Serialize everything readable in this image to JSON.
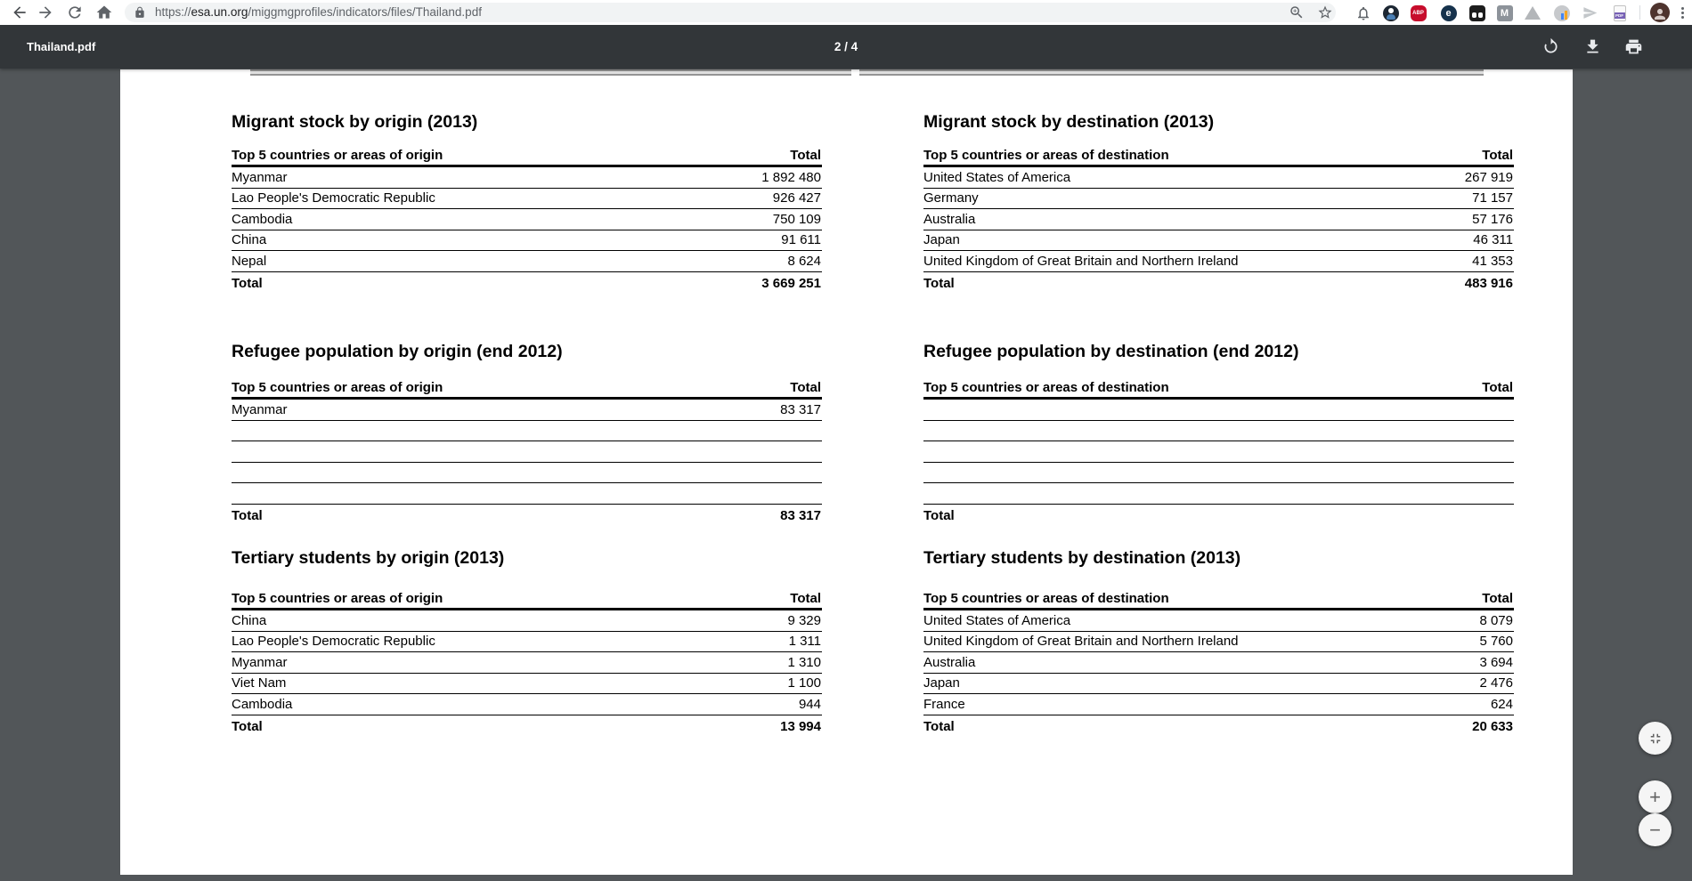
{
  "browser": {
    "omnibox": {
      "scheme": "https://",
      "domain": "esa.un.org",
      "path": "/miggmgprofiles/indicators/files/Thailand.pdf"
    },
    "icons": [
      "back-arrow-icon",
      "forward-arrow-icon",
      "reload-icon",
      "home-icon",
      "lock-icon",
      "zoom-magnifier-icon",
      "bookmark-star-icon",
      "bell-icon",
      "privacy-extension-icon",
      "adblock-extension-icon",
      "e-extension-icon",
      "domino-extension-icon",
      "m-extension-icon",
      "drive-extension-icon",
      "stats-extension-icon",
      "paper-plane-extension-icon",
      "pdf-extension-icon",
      "profile-avatar",
      "browser-menu-icon"
    ],
    "extensions": {
      "adblock_label": "ABP",
      "e_label": "e",
      "m_label": "M",
      "pdf_label": "PDF"
    }
  },
  "pdf_toolbar": {
    "filename": "Thailand.pdf",
    "page_indicator": "2 / 4",
    "icons": [
      "rotate-icon",
      "download-icon",
      "print-icon"
    ]
  },
  "zoom_controls": {
    "fit_icon": "fit-to-page-icon",
    "zoom_in_label": "+",
    "zoom_out_label": "−"
  },
  "colors": {
    "pdf_toolbar_bg": "#323639",
    "viewer_bg": "#525659",
    "omnibox_bg": "#f1f3f4",
    "adblock_red": "#c70d2c",
    "pdf_badge_purple": "#7761b5"
  },
  "document": {
    "tables": [
      {
        "title": "Migrant stock by origin (2013)",
        "col_header": "Top 5 countries or areas of origin",
        "total_header": "Total",
        "rows": [
          [
            "Myanmar",
            "1 892 480"
          ],
          [
            "Lao People's Democratic Republic",
            "926 427"
          ],
          [
            "Cambodia",
            "750 109"
          ],
          [
            "China",
            "91 611"
          ],
          [
            "Nepal",
            "8 624"
          ]
        ],
        "blank_rows": 0,
        "total_label": "Total",
        "total_value": "3 669 251"
      },
      {
        "title": "Migrant stock by destination (2013)",
        "col_header": "Top 5 countries or areas of destination",
        "total_header": "Total",
        "rows": [
          [
            "United States of America",
            "267 919"
          ],
          [
            "Germany",
            "71 157"
          ],
          [
            "Australia",
            "57 176"
          ],
          [
            "Japan",
            "46 311"
          ],
          [
            "United Kingdom of Great Britain and Northern Ireland",
            "41 353"
          ]
        ],
        "blank_rows": 0,
        "total_label": "Total",
        "total_value": "483 916"
      },
      {
        "title": "Refugee population by origin (end 2012)",
        "col_header": "Top 5 countries or areas of origin",
        "total_header": "Total",
        "rows": [
          [
            "Myanmar",
            "83 317"
          ]
        ],
        "blank_rows": 4,
        "total_label": "Total",
        "total_value": "83 317"
      },
      {
        "title": "Refugee population by destination (end 2012)",
        "col_header": "Top 5 countries or areas of destination",
        "total_header": "Total",
        "rows": [],
        "blank_rows": 5,
        "total_label": "Total",
        "total_value": ""
      },
      {
        "title": "Tertiary students by origin (2013)",
        "col_header": "Top 5 countries or areas of origin",
        "total_header": "Total",
        "rows": [
          [
            "China",
            "9 329"
          ],
          [
            "Lao People's Democratic Republic",
            "1 311"
          ],
          [
            "Myanmar",
            "1 310"
          ],
          [
            "Viet Nam",
            "1 100"
          ],
          [
            "Cambodia",
            "944"
          ]
        ],
        "blank_rows": 0,
        "total_label": "Total",
        "total_value": "13 994"
      },
      {
        "title": "Tertiary students by destination (2013)",
        "col_header": "Top 5 countries or areas of destination",
        "total_header": "Total",
        "rows": [
          [
            "United States of America",
            "8 079"
          ],
          [
            "United Kingdom of Great Britain and Northern Ireland",
            "5 760"
          ],
          [
            "Australia",
            "3 694"
          ],
          [
            "Japan",
            "2 476"
          ],
          [
            "France",
            "624"
          ]
        ],
        "blank_rows": 0,
        "total_label": "Total",
        "total_value": "20 633"
      }
    ]
  }
}
